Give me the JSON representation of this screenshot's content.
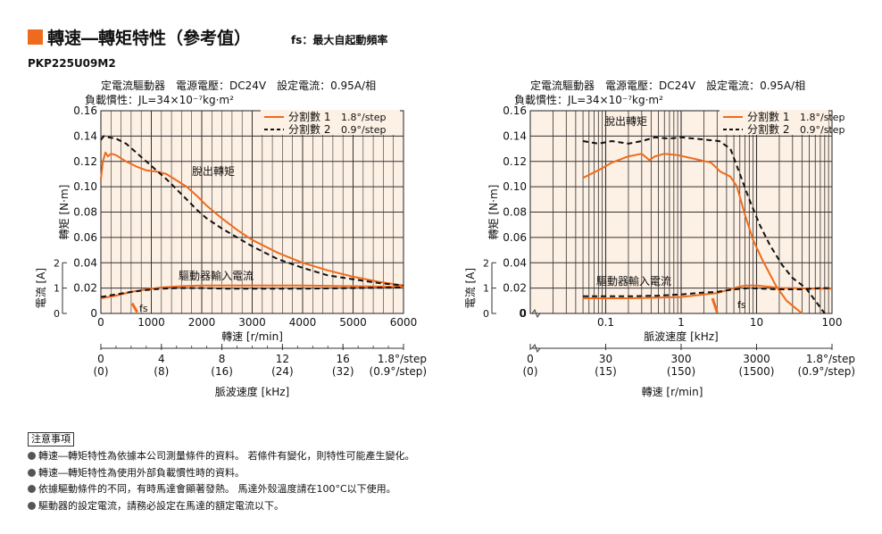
{
  "header": {
    "title": "轉速―轉矩特性（參考值）",
    "subtitle": "fs：最大自起動頻率",
    "model": "PKP225U09M2"
  },
  "colors": {
    "accent": "#ee6b1d",
    "plot_bg": "#fdf0e4",
    "orange_curve": "#ee6b1d",
    "black_curve": "#111111"
  },
  "chart_data": [
    {
      "type": "line",
      "conditions_line1": "定電流驅動器　電源電壓：DC24V　設定電流：0.95A/相",
      "conditions_line2": "負載慣性：JL=34×10⁻⁷kg·m²",
      "x_scale": "linear",
      "xlabel": "轉速 [r/min]",
      "ylabel": "轉矩 [N·m]",
      "current_label": "電流 [A]",
      "xlim": [
        0,
        6000
      ],
      "ylim": [
        0,
        0.16
      ],
      "x_ticks": [
        "0",
        "1000",
        "2000",
        "3000",
        "4000",
        "5000",
        "6000"
      ],
      "y_ticks": [
        "0",
        "0.02",
        "0.04",
        "0.06",
        "0.08",
        "0.10",
        "0.12",
        "0.14",
        "0.16"
      ],
      "current_ticks": [
        "0",
        "1",
        "2"
      ],
      "annotations": {
        "torque": "脫出轉矩",
        "current": "驅動器輸入電流",
        "fs": "fs"
      },
      "legend": [
        {
          "label": "分割數 1",
          "step": "1.8°/step",
          "color": "#ee6b1d",
          "style": "solid"
        },
        {
          "label": "分割數 2",
          "step": "0.9°/step",
          "color": "#111111",
          "style": "dashed"
        }
      ],
      "series": [
        {
          "name": "分割數 1",
          "kind": "torque",
          "points": [
            [
              0,
              0.106
            ],
            [
              40,
              0.12
            ],
            [
              90,
              0.127
            ],
            [
              140,
              0.124
            ],
            [
              200,
              0.126
            ],
            [
              300,
              0.125
            ],
            [
              500,
              0.12
            ],
            [
              700,
              0.116
            ],
            [
              900,
              0.113
            ],
            [
              1100,
              0.112
            ],
            [
              1300,
              0.11
            ],
            [
              1500,
              0.105
            ],
            [
              1700,
              0.1
            ],
            [
              1900,
              0.093
            ],
            [
              2100,
              0.085
            ],
            [
              2400,
              0.075
            ],
            [
              2700,
              0.066
            ],
            [
              3000,
              0.058
            ],
            [
              3500,
              0.048
            ],
            [
              4000,
              0.04
            ],
            [
              4500,
              0.034
            ],
            [
              5000,
              0.029
            ],
            [
              5500,
              0.025
            ],
            [
              6000,
              0.022
            ]
          ]
        },
        {
          "name": "分割數 2",
          "kind": "torque",
          "points": [
            [
              0,
              0.137
            ],
            [
              60,
              0.14
            ],
            [
              150,
              0.139
            ],
            [
              300,
              0.138
            ],
            [
              500,
              0.134
            ],
            [
              700,
              0.127
            ],
            [
              900,
              0.12
            ],
            [
              1100,
              0.113
            ],
            [
              1300,
              0.106
            ],
            [
              1500,
              0.098
            ],
            [
              1700,
              0.09
            ],
            [
              1900,
              0.082
            ],
            [
              2100,
              0.075
            ],
            [
              2400,
              0.067
            ],
            [
              2700,
              0.06
            ],
            [
              3000,
              0.053
            ],
            [
              3500,
              0.043
            ],
            [
              4000,
              0.036
            ],
            [
              4500,
              0.03
            ],
            [
              5000,
              0.027
            ],
            [
              5500,
              0.024
            ],
            [
              6000,
              0.022
            ]
          ]
        },
        {
          "name": "分割數 1",
          "kind": "current",
          "points": [
            [
              0,
              0.012
            ],
            [
              300,
              0.014
            ],
            [
              600,
              0.017
            ],
            [
              900,
              0.019
            ],
            [
              1200,
              0.0205
            ],
            [
              1600,
              0.0215
            ],
            [
              2000,
              0.022
            ],
            [
              2500,
              0.022
            ],
            [
              3000,
              0.022
            ],
            [
              4000,
              0.022
            ],
            [
              5000,
              0.0215
            ],
            [
              6000,
              0.021
            ]
          ]
        },
        {
          "name": "分割數 2",
          "kind": "current",
          "points": [
            [
              0,
              0.013
            ],
            [
              300,
              0.015
            ],
            [
              600,
              0.017
            ],
            [
              900,
              0.0185
            ],
            [
              1200,
              0.0195
            ],
            [
              1500,
              0.02
            ],
            [
              2000,
              0.02
            ],
            [
              2500,
              0.0195
            ],
            [
              3000,
              0.0195
            ],
            [
              4000,
              0.0195
            ],
            [
              5000,
              0.02
            ],
            [
              6000,
              0.0205
            ]
          ]
        },
        {
          "name": "fs",
          "kind": "fs",
          "points": [
            [
              620,
              0.008
            ],
            [
              720,
              0.001
            ]
          ]
        }
      ],
      "secondary_axis": {
        "label": "脈波速度 [kHz]",
        "ticks": [
          {
            "main": "0",
            "sub": "(0)"
          },
          {
            "main": "4",
            "sub": "(8)"
          },
          {
            "main": "8",
            "sub": "(16)"
          },
          {
            "main": "12",
            "sub": "(24)"
          },
          {
            "main": "16",
            "sub": "(32)"
          },
          {
            "main": "1.8°/step",
            "sub": "(0.9°/step)"
          }
        ]
      }
    },
    {
      "type": "line",
      "conditions_line1": "定電流驅動器　電源電壓：DC24V　設定電流：0.95A/相",
      "conditions_line2": "負載慣性：JL=34×10⁻⁷kg·m²",
      "x_scale": "log",
      "xlabel": "脈波速度 [kHz]",
      "ylabel": "轉矩 [N·m]",
      "current_label": "電流 [A]",
      "xlim": [
        0.01,
        100
      ],
      "ylim": [
        0,
        0.16
      ],
      "x_ticks": [
        "0",
        "0.1",
        "1",
        "10",
        "100"
      ],
      "y_ticks": [
        "0",
        "0.02",
        "0.04",
        "0.06",
        "0.08",
        "0.10",
        "0.12",
        "0.14",
        "0.16"
      ],
      "current_ticks": [
        "0",
        "1",
        "2"
      ],
      "annotations": {
        "torque": "脫出轉矩",
        "current": "驅動器輸入電流",
        "fs": "fs"
      },
      "legend": [
        {
          "label": "分割數 1",
          "step": "1.8°/step",
          "color": "#ee6b1d",
          "style": "solid"
        },
        {
          "label": "分割數 2",
          "step": "0.9°/step",
          "color": "#111111",
          "style": "dashed"
        }
      ],
      "series": [
        {
          "name": "分割數 1",
          "kind": "torque",
          "points": [
            [
              0.05,
              0.107
            ],
            [
              0.08,
              0.113
            ],
            [
              0.12,
              0.119
            ],
            [
              0.2,
              0.124
            ],
            [
              0.3,
              0.126
            ],
            [
              0.38,
              0.121
            ],
            [
              0.45,
              0.124
            ],
            [
              0.6,
              0.126
            ],
            [
              0.9,
              0.125
            ],
            [
              1.5,
              0.122
            ],
            [
              2.5,
              0.119
            ],
            [
              3.3,
              0.112
            ],
            [
              4.5,
              0.108
            ],
            [
              5.5,
              0.1
            ],
            [
              7,
              0.078
            ],
            [
              9,
              0.058
            ],
            [
              12,
              0.042
            ],
            [
              18,
              0.022
            ],
            [
              25,
              0.01
            ],
            [
              40,
              0
            ]
          ]
        },
        {
          "name": "分割數 2",
          "kind": "torque",
          "points": [
            [
              0.05,
              0.136
            ],
            [
              0.08,
              0.134
            ],
            [
              0.12,
              0.136
            ],
            [
              0.2,
              0.134
            ],
            [
              0.3,
              0.136
            ],
            [
              0.45,
              0.139
            ],
            [
              0.7,
              0.138
            ],
            [
              1,
              0.139
            ],
            [
              1.5,
              0.138
            ],
            [
              2.2,
              0.137
            ],
            [
              3.2,
              0.136
            ],
            [
              4.5,
              0.13
            ],
            [
              6,
              0.11
            ],
            [
              8,
              0.09
            ],
            [
              11,
              0.07
            ],
            [
              15,
              0.054
            ],
            [
              22,
              0.038
            ],
            [
              30,
              0.028
            ],
            [
              45,
              0.02
            ],
            [
              60,
              0.01
            ],
            [
              80,
              0
            ]
          ]
        },
        {
          "name": "分割數 1",
          "kind": "current",
          "points": [
            [
              0.05,
              0.012
            ],
            [
              0.2,
              0.012
            ],
            [
              0.5,
              0.0125
            ],
            [
              1,
              0.013
            ],
            [
              2,
              0.015
            ],
            [
              3,
              0.016
            ],
            [
              5,
              0.02
            ],
            [
              7,
              0.022
            ],
            [
              10,
              0.022
            ],
            [
              15,
              0.021
            ],
            [
              20,
              0.02
            ],
            [
              30,
              0.02
            ],
            [
              50,
              0.0195
            ],
            [
              100,
              0.0195
            ]
          ]
        },
        {
          "name": "分割數 2",
          "kind": "current",
          "points": [
            [
              0.05,
              0.0135
            ],
            [
              0.2,
              0.0135
            ],
            [
              0.5,
              0.014
            ],
            [
              1,
              0.015
            ],
            [
              2,
              0.0165
            ],
            [
              3,
              0.017
            ],
            [
              5,
              0.019
            ],
            [
              8,
              0.02
            ],
            [
              12,
              0.0195
            ],
            [
              20,
              0.019
            ],
            [
              40,
              0.019
            ],
            [
              70,
              0.02
            ],
            [
              100,
              0.02
            ]
          ]
        },
        {
          "name": "fs",
          "kind": "fs",
          "points": [
            [
              2.6,
              0.012
            ],
            [
              3.0,
              0.001
            ]
          ]
        }
      ],
      "secondary_axis": {
        "label": "轉速 [r/min]",
        "ticks": [
          {
            "main": "0",
            "sub": "(0)"
          },
          {
            "main": "30",
            "sub": "(15)"
          },
          {
            "main": "300",
            "sub": "(150)"
          },
          {
            "main": "3000",
            "sub": "(1500)"
          },
          {
            "main": "1.8°/step",
            "sub": "(0.9°/step)"
          }
        ]
      }
    }
  ],
  "notes": {
    "heading": "注意事項",
    "items": [
      "轉速―轉矩特性為依據本公司測量條件的資料。 若條件有變化，則特性可能產生變化。",
      "轉速―轉矩特性為使用外部負載慣性時的資料。",
      "依據驅動條件的不同，有時馬達會顯著發熱。 馬達外殼溫度請在100°C以下使用。",
      "驅動器的設定電流，請務必設定在馬達的額定電流以下。"
    ]
  }
}
